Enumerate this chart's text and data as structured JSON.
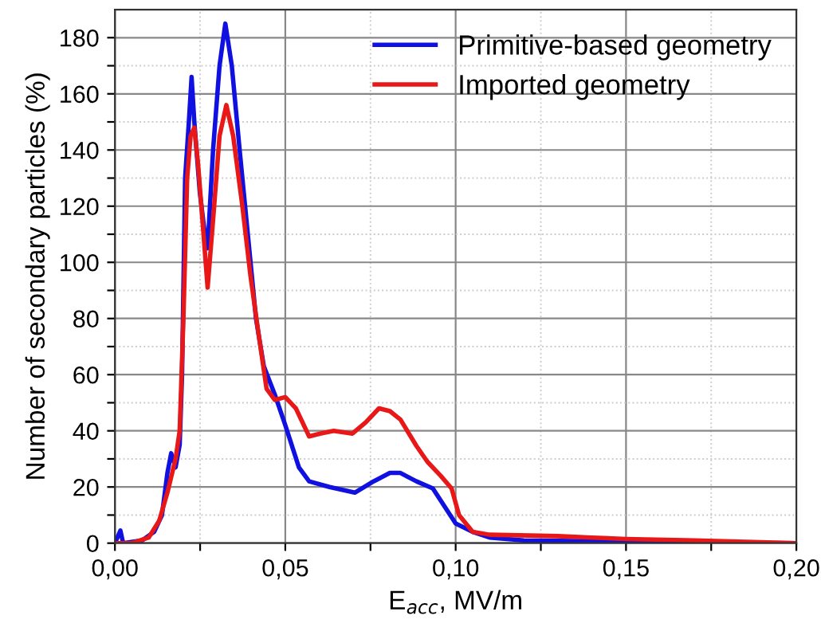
{
  "chart_data": {
    "type": "line",
    "xlabel": "E$_{acc}$, MV/m",
    "ylabel": "Number of secondary particles (%)",
    "xlim": [
      0,
      0.2
    ],
    "ylim": [
      0,
      190
    ],
    "xticks": [
      {
        "value": 0,
        "label": "0,00"
      },
      {
        "value": 0.025,
        "label": null
      },
      {
        "value": 0.05,
        "label": "0,05"
      },
      {
        "value": 0.075,
        "label": null
      },
      {
        "value": 0.1,
        "label": "0,10"
      },
      {
        "value": 0.125,
        "label": null
      },
      {
        "value": 0.15,
        "label": "0,15"
      },
      {
        "value": 0.175,
        "label": null
      },
      {
        "value": 0.2,
        "label": "0,20"
      }
    ],
    "yticks": [
      0,
      {
        "value": 10,
        "label": null
      },
      20,
      {
        "value": 30,
        "label": null
      },
      40,
      {
        "value": 50,
        "label": null
      },
      60,
      {
        "value": 70,
        "label": null
      },
      80,
      {
        "value": 90,
        "label": null
      },
      100,
      {
        "value": 110,
        "label": null
      },
      120,
      {
        "value": 130,
        "label": null
      },
      140,
      {
        "value": 150,
        "label": null
      },
      160,
      {
        "value": 170,
        "label": null
      },
      180
    ],
    "grid": true,
    "legend": "top right",
    "line_style": "solid",
    "series": [
      {
        "name": "Primitive-based geometry",
        "color": "#1010e0",
        "x": [
          0,
          0.0016,
          0.0024,
          0.008,
          0.0115,
          0.0138,
          0.0154,
          0.0165,
          0.0178,
          0.019,
          0.0197,
          0.0206,
          0.0217,
          0.0225,
          0.0233,
          0.0249,
          0.0264,
          0.0272,
          0.0288,
          0.0307,
          0.0324,
          0.0343,
          0.0366,
          0.039,
          0.0414,
          0.0437,
          0.0469,
          0.05,
          0.054,
          0.057,
          0.063,
          0.0704,
          0.0759,
          0.0807,
          0.0838,
          0.0885,
          0.0933,
          0.1,
          0.105,
          0.11,
          0.12,
          0.15,
          0.2
        ],
        "values": [
          0,
          4.5,
          0,
          1,
          4,
          10,
          25,
          32,
          27,
          35,
          60,
          130,
          150,
          166,
          150,
          125,
          110,
          105,
          140,
          170,
          185,
          170,
          140,
          110,
          80,
          63,
          53,
          42,
          27,
          22,
          20,
          18,
          22,
          25,
          25,
          22,
          19.5,
          7,
          4,
          2,
          1,
          0.5,
          0
        ]
      },
      {
        "name": "Imported geometry",
        "color": "#e81818",
        "x": [
          0,
          0.005,
          0.0099,
          0.013,
          0.0154,
          0.0178,
          0.019,
          0.0201,
          0.0212,
          0.0222,
          0.0233,
          0.0244,
          0.026,
          0.0272,
          0.0288,
          0.0307,
          0.0327,
          0.0347,
          0.0374,
          0.0398,
          0.0421,
          0.0445,
          0.0469,
          0.05,
          0.0531,
          0.057,
          0.0602,
          0.0642,
          0.0697,
          0.0736,
          0.0775,
          0.0807,
          0.0838,
          0.0885,
          0.0917,
          0.0956,
          0.0988,
          0.101,
          0.105,
          0.11,
          0.13,
          0.14,
          0.15,
          0.17,
          0.2
        ],
        "values": [
          0,
          0,
          2,
          8,
          18,
          30,
          40,
          80,
          130,
          145,
          148,
          135,
          110,
          91,
          115,
          145,
          156,
          145,
          120,
          95,
          75,
          55,
          51,
          52,
          48,
          38,
          39,
          40,
          39,
          43,
          48,
          47,
          44,
          34.6,
          29,
          24,
          19.5,
          10,
          4,
          3,
          2.5,
          2,
          1.5,
          1,
          0
        ]
      }
    ]
  }
}
